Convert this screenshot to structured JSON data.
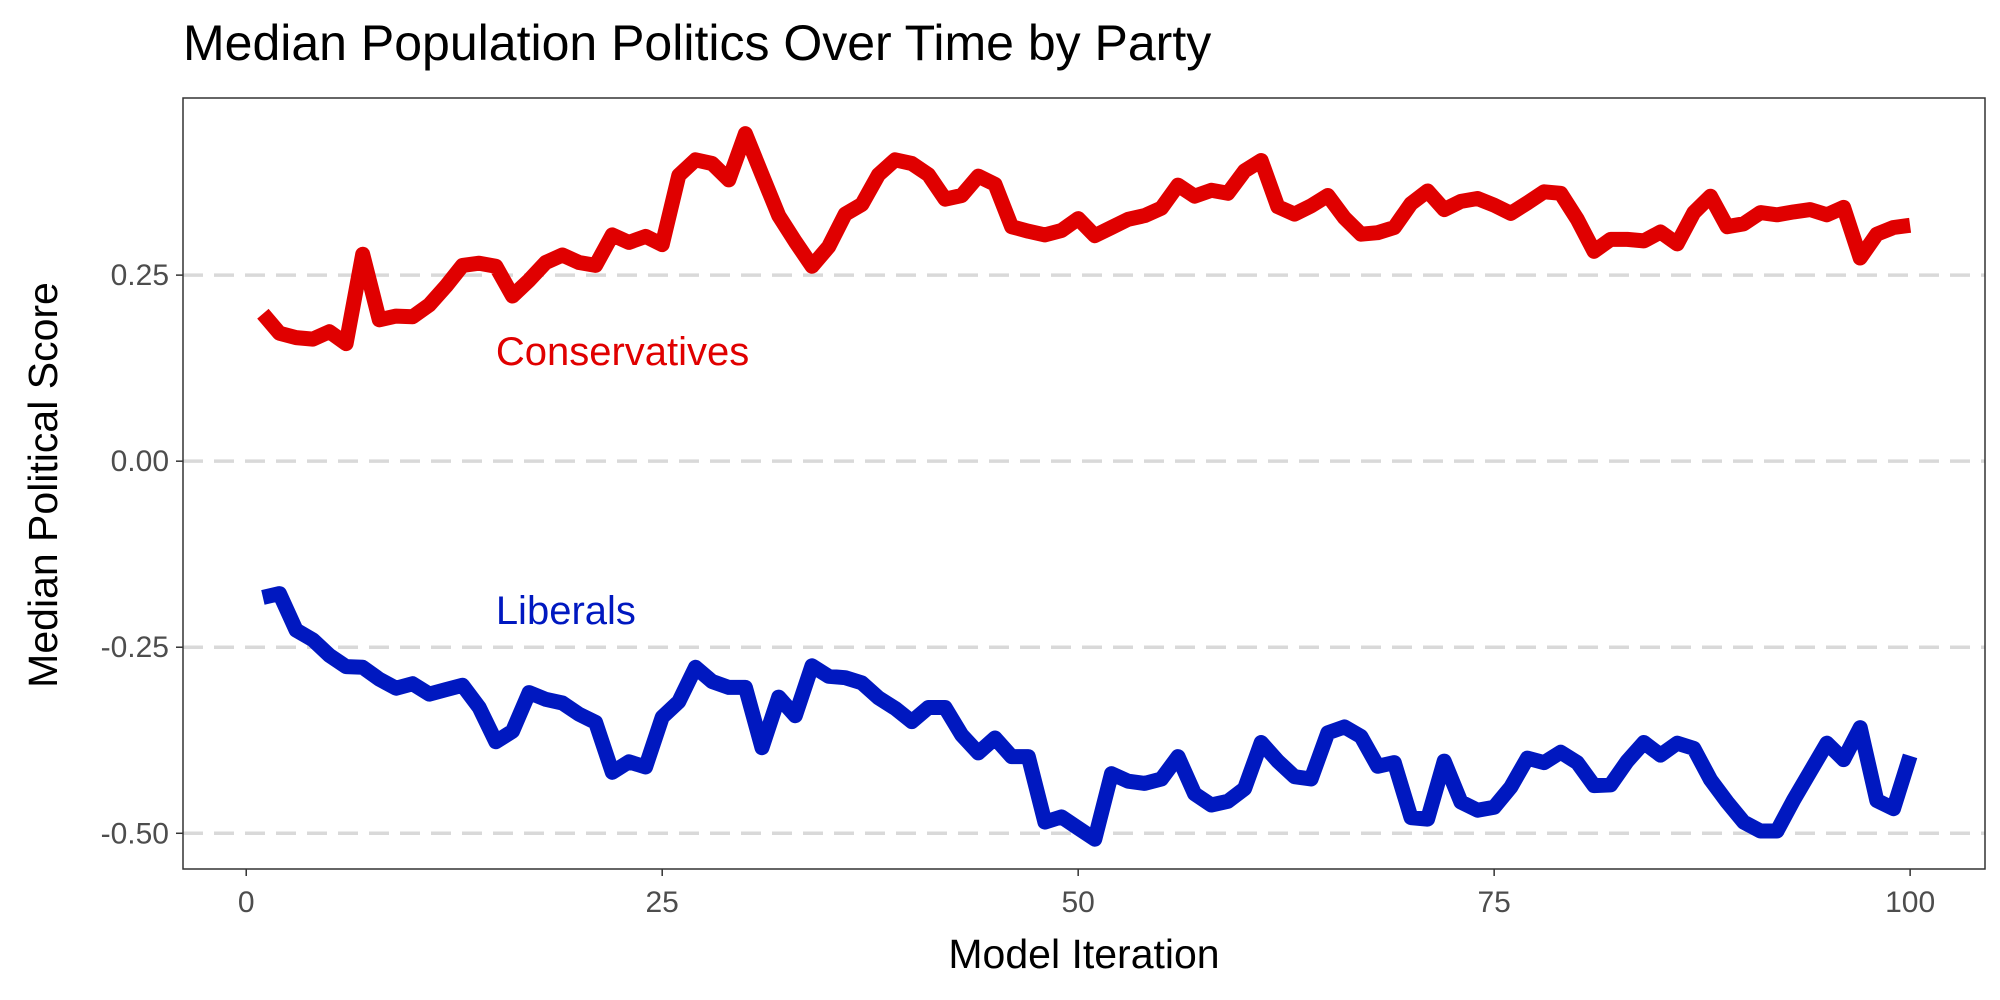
{
  "chart_data": {
    "type": "line",
    "title": "Median Population Politics Over Time by Party",
    "xlabel": "Model Iteration",
    "ylabel": "Median Political Score",
    "xlim": [
      -3.8,
      104.5
    ],
    "ylim": [
      -0.548,
      0.488
    ],
    "x_ticks": [
      {
        "value": 0,
        "label": "0"
      },
      {
        "value": 25,
        "label": "25"
      },
      {
        "value": 50,
        "label": "50"
      },
      {
        "value": 75,
        "label": "75"
      },
      {
        "value": 100,
        "label": "100"
      }
    ],
    "y_ticks": [
      {
        "value": 0.25,
        "label": "0.25"
      },
      {
        "value": 0.0,
        "label": "0.00"
      },
      {
        "value": -0.25,
        "label": "-0.25"
      },
      {
        "value": -0.5,
        "label": "-0.50"
      }
    ],
    "grid": {
      "horizontal_major": true,
      "style": "dashed"
    },
    "legend": "direct labels inside plot",
    "annotations": [
      {
        "text": "Conservatives",
        "x": 15,
        "y": 0.148,
        "color": "#e00000"
      },
      {
        "text": "Liberals",
        "x": 15,
        "y": -0.2,
        "color": "#0018c0"
      }
    ],
    "series": [
      {
        "name": "Conservatives",
        "color": "#e00000",
        "x": [
          1,
          2,
          3,
          4,
          5,
          6,
          7,
          8,
          9,
          10,
          11,
          12,
          13,
          14,
          15,
          16,
          17,
          18,
          19,
          20,
          21,
          22,
          23,
          24,
          25,
          26,
          27,
          28,
          29,
          30,
          31,
          32,
          33,
          34,
          35,
          36,
          37,
          38,
          39,
          40,
          41,
          42,
          43,
          44,
          45,
          46,
          47,
          48,
          49,
          50,
          51,
          52,
          53,
          54,
          55,
          56,
          57,
          58,
          59,
          60,
          61,
          62,
          63,
          64,
          65,
          66,
          67,
          68,
          69,
          70,
          71,
          72,
          73,
          74,
          75,
          76,
          77,
          78,
          79,
          80,
          81,
          82,
          83,
          84,
          85,
          86,
          87,
          88,
          89,
          90,
          91,
          92,
          93,
          94,
          95,
          96,
          97,
          98,
          99,
          100
        ],
        "y": [
          0.198,
          0.172,
          0.166,
          0.164,
          0.174,
          0.158,
          0.278,
          0.19,
          0.195,
          0.194,
          0.21,
          0.235,
          0.263,
          0.266,
          0.262,
          0.222,
          0.243,
          0.267,
          0.277,
          0.267,
          0.263,
          0.304,
          0.294,
          0.302,
          0.291,
          0.384,
          0.405,
          0.4,
          0.378,
          0.44,
          0.385,
          0.33,
          0.295,
          0.262,
          0.288,
          0.332,
          0.345,
          0.385,
          0.405,
          0.4,
          0.385,
          0.352,
          0.357,
          0.383,
          0.372,
          0.315,
          0.309,
          0.304,
          0.31,
          0.326,
          0.303,
          0.314,
          0.325,
          0.33,
          0.34,
          0.371,
          0.356,
          0.364,
          0.36,
          0.39,
          0.404,
          0.342,
          0.332,
          0.343,
          0.357,
          0.327,
          0.305,
          0.307,
          0.314,
          0.346,
          0.363,
          0.338,
          0.349,
          0.353,
          0.344,
          0.333,
          0.347,
          0.362,
          0.36,
          0.325,
          0.282,
          0.298,
          0.298,
          0.296,
          0.308,
          0.292,
          0.334,
          0.356,
          0.315,
          0.319,
          0.334,
          0.331,
          0.335,
          0.338,
          0.331,
          0.341,
          0.273,
          0.305,
          0.314,
          0.317
        ]
      },
      {
        "name": "Liberals",
        "color": "#0018c0",
        "x": [
          1,
          2,
          3,
          4,
          5,
          6,
          7,
          8,
          9,
          10,
          11,
          12,
          13,
          14,
          15,
          16,
          17,
          18,
          19,
          20,
          21,
          22,
          23,
          24,
          25,
          26,
          27,
          28,
          29,
          30,
          31,
          32,
          33,
          34,
          35,
          36,
          37,
          38,
          39,
          40,
          41,
          42,
          43,
          44,
          45,
          46,
          47,
          48,
          49,
          50,
          51,
          52,
          53,
          54,
          55,
          56,
          57,
          58,
          59,
          60,
          61,
          62,
          63,
          64,
          65,
          66,
          67,
          68,
          69,
          70,
          71,
          72,
          73,
          74,
          75,
          76,
          77,
          78,
          79,
          80,
          81,
          82,
          83,
          84,
          85,
          86,
          87,
          88,
          89,
          90,
          91,
          92,
          93,
          94,
          95,
          96,
          97,
          98,
          99,
          100
        ],
        "y": [
          -0.183,
          -0.178,
          -0.227,
          -0.24,
          -0.261,
          -0.276,
          -0.277,
          -0.293,
          -0.305,
          -0.299,
          -0.313,
          -0.307,
          -0.301,
          -0.331,
          -0.377,
          -0.363,
          -0.311,
          -0.32,
          -0.325,
          -0.34,
          -0.351,
          -0.418,
          -0.404,
          -0.411,
          -0.344,
          -0.323,
          -0.277,
          -0.296,
          -0.304,
          -0.304,
          -0.385,
          -0.317,
          -0.342,
          -0.275,
          -0.289,
          -0.291,
          -0.298,
          -0.318,
          -0.332,
          -0.35,
          -0.331,
          -0.331,
          -0.368,
          -0.392,
          -0.372,
          -0.397,
          -0.397,
          -0.485,
          -0.478,
          -0.493,
          -0.508,
          -0.42,
          -0.43,
          -0.433,
          -0.427,
          -0.397,
          -0.447,
          -0.462,
          -0.457,
          -0.44,
          -0.378,
          -0.403,
          -0.424,
          -0.427,
          -0.365,
          -0.357,
          -0.37,
          -0.41,
          -0.405,
          -0.479,
          -0.481,
          -0.403,
          -0.458,
          -0.469,
          -0.465,
          -0.438,
          -0.399,
          -0.405,
          -0.391,
          -0.405,
          -0.436,
          -0.435,
          -0.403,
          -0.378,
          -0.395,
          -0.379,
          -0.386,
          -0.428,
          -0.458,
          -0.485,
          -0.497,
          -0.497,
          -0.455,
          -0.417,
          -0.379,
          -0.401,
          -0.358,
          -0.456,
          -0.467,
          -0.396
        ]
      }
    ]
  }
}
